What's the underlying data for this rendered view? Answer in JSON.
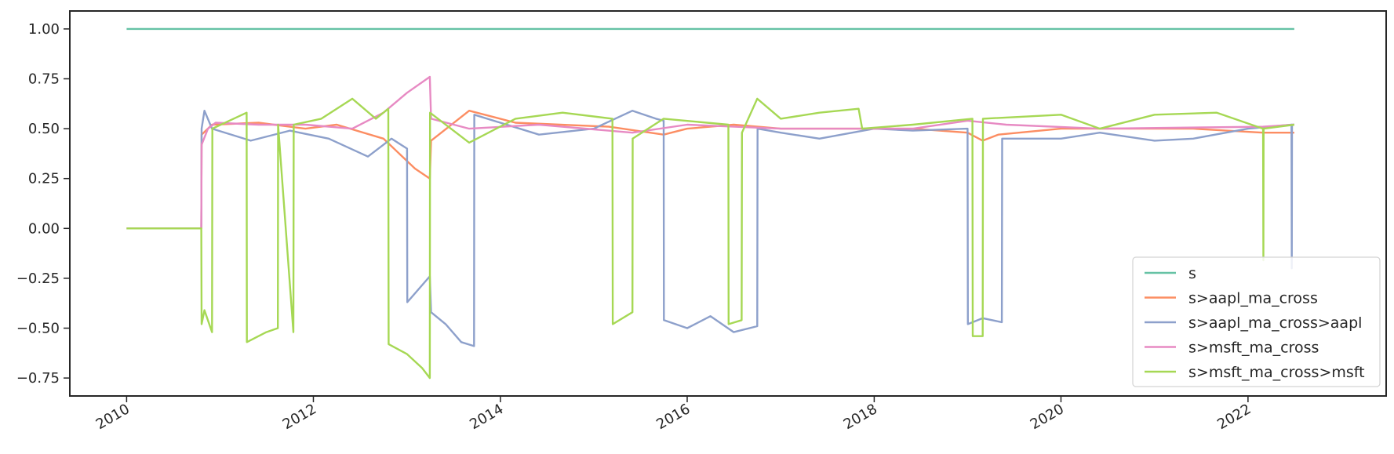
{
  "chart_data": {
    "type": "line",
    "title": "",
    "xlabel": "",
    "ylabel": "",
    "x_axis": "date",
    "xlim": [
      "2009-05-24",
      "2023-06-25"
    ],
    "ylim": [
      -0.84,
      1.09
    ],
    "x_ticks": [
      {
        "date": "2010-01-01",
        "label": "2010"
      },
      {
        "date": "2012-01-01",
        "label": "2012"
      },
      {
        "date": "2014-01-01",
        "label": "2014"
      },
      {
        "date": "2016-01-01",
        "label": "2016"
      },
      {
        "date": "2018-01-01",
        "label": "2018"
      },
      {
        "date": "2020-01-01",
        "label": "2020"
      },
      {
        "date": "2022-01-01",
        "label": "2022"
      }
    ],
    "y_ticks": [
      {
        "value": 1.0,
        "label": "1.00"
      },
      {
        "value": 0.75,
        "label": "0.75"
      },
      {
        "value": 0.5,
        "label": "0.50"
      },
      {
        "value": 0.25,
        "label": "0.25"
      },
      {
        "value": 0.0,
        "label": "0.00"
      },
      {
        "value": -0.25,
        "label": "−0.25"
      },
      {
        "value": -0.5,
        "label": "−0.50"
      },
      {
        "value": -0.75,
        "label": "−0.75"
      }
    ],
    "grid": false,
    "legend_position": "lower-right",
    "series": [
      {
        "name": "s",
        "color": "#66c2a5",
        "points": [
          [
            "2010-01-01",
            1.0
          ],
          [
            "2022-07-01",
            1.0
          ]
        ]
      },
      {
        "name": "s>aapl_ma_cross",
        "color": "#fc8d62",
        "points": [
          [
            "2010-01-01",
            0.0
          ],
          [
            "2010-10-20",
            0.0
          ],
          [
            "2010-10-21",
            0.47
          ],
          [
            "2010-12-01",
            0.52
          ],
          [
            "2011-06-01",
            0.53
          ],
          [
            "2011-12-01",
            0.5
          ],
          [
            "2012-04-01",
            0.52
          ],
          [
            "2012-10-01",
            0.45
          ],
          [
            "2013-02-01",
            0.3
          ],
          [
            "2013-03-31",
            0.25
          ],
          [
            "2013-04-05",
            0.44
          ],
          [
            "2013-09-01",
            0.59
          ],
          [
            "2014-03-01",
            0.53
          ],
          [
            "2015-03-01",
            0.51
          ],
          [
            "2015-10-01",
            0.47
          ],
          [
            "2016-01-01",
            0.5
          ],
          [
            "2016-07-01",
            0.52
          ],
          [
            "2017-01-01",
            0.5
          ],
          [
            "2018-06-01",
            0.5
          ],
          [
            "2019-01-01",
            0.48
          ],
          [
            "2019-03-01",
            0.44
          ],
          [
            "2019-05-01",
            0.47
          ],
          [
            "2020-01-01",
            0.5
          ],
          [
            "2021-06-01",
            0.5
          ],
          [
            "2022-03-01",
            0.48
          ],
          [
            "2022-07-01",
            0.48
          ]
        ]
      },
      {
        "name": "s>aapl_ma_cross>aapl",
        "color": "#8da0cb",
        "points": [
          [
            "2010-01-01",
            0.0
          ],
          [
            "2010-10-20",
            0.0
          ],
          [
            "2010-10-21",
            0.5
          ],
          [
            "2010-11-01",
            0.59
          ],
          [
            "2010-12-01",
            0.5
          ],
          [
            "2011-05-01",
            0.44
          ],
          [
            "2011-10-01",
            0.49
          ],
          [
            "2012-03-01",
            0.45
          ],
          [
            "2012-08-01",
            0.36
          ],
          [
            "2012-11-01",
            0.45
          ],
          [
            "2013-01-01",
            0.4
          ],
          [
            "2013-01-02",
            -0.37
          ],
          [
            "2013-03-31",
            -0.24
          ],
          [
            "2013-04-05",
            -0.42
          ],
          [
            "2013-06-01",
            -0.48
          ],
          [
            "2013-08-01",
            -0.57
          ],
          [
            "2013-09-20",
            -0.59
          ],
          [
            "2013-09-21",
            0.57
          ],
          [
            "2014-06-01",
            0.47
          ],
          [
            "2015-01-01",
            0.5
          ],
          [
            "2015-06-01",
            0.59
          ],
          [
            "2015-09-01",
            0.55
          ],
          [
            "2015-10-01",
            0.54
          ],
          [
            "2015-10-02",
            -0.46
          ],
          [
            "2016-01-01",
            -0.5
          ],
          [
            "2016-04-01",
            -0.44
          ],
          [
            "2016-07-01",
            -0.52
          ],
          [
            "2016-10-01",
            -0.49
          ],
          [
            "2016-10-02",
            0.5
          ],
          [
            "2017-01-01",
            0.48
          ],
          [
            "2017-06-01",
            0.45
          ],
          [
            "2018-01-01",
            0.5
          ],
          [
            "2018-06-01",
            0.49
          ],
          [
            "2019-01-01",
            0.5
          ],
          [
            "2019-01-02",
            -0.48
          ],
          [
            "2019-03-01",
            -0.45
          ],
          [
            "2019-05-15",
            -0.47
          ],
          [
            "2019-05-16",
            0.45
          ],
          [
            "2020-01-01",
            0.45
          ],
          [
            "2020-06-01",
            0.48
          ],
          [
            "2021-01-01",
            0.44
          ],
          [
            "2021-06-01",
            0.45
          ],
          [
            "2022-01-01",
            0.5
          ],
          [
            "2022-06-20",
            0.52
          ],
          [
            "2022-06-21",
            -0.2
          ],
          [
            "2022-06-22",
            0.52
          ],
          [
            "2022-07-01",
            0.52
          ]
        ]
      },
      {
        "name": "s>msft_ma_cross",
        "color": "#e78ac3",
        "points": [
          [
            "2010-01-01",
            0.0
          ],
          [
            "2010-10-20",
            0.0
          ],
          [
            "2010-10-21",
            0.42
          ],
          [
            "2010-11-15",
            0.5
          ],
          [
            "2010-12-15",
            0.53
          ],
          [
            "2011-06-01",
            0.52
          ],
          [
            "2011-12-01",
            0.52
          ],
          [
            "2012-06-01",
            0.5
          ],
          [
            "2012-10-01",
            0.58
          ],
          [
            "2013-01-01",
            0.68
          ],
          [
            "2013-03-31",
            0.76
          ],
          [
            "2013-04-05",
            0.55
          ],
          [
            "2013-09-01",
            0.5
          ],
          [
            "2014-06-01",
            0.52
          ],
          [
            "2015-06-01",
            0.48
          ],
          [
            "2016-01-01",
            0.52
          ],
          [
            "2017-01-01",
            0.5
          ],
          [
            "2018-06-01",
            0.5
          ],
          [
            "2019-01-01",
            0.54
          ],
          [
            "2019-06-01",
            0.52
          ],
          [
            "2020-06-01",
            0.5
          ],
          [
            "2022-03-01",
            0.51
          ],
          [
            "2022-07-01",
            0.52
          ]
        ]
      },
      {
        "name": "s>msft_ma_cross>msft",
        "color": "#a6d854",
        "points": [
          [
            "2010-01-01",
            0.0
          ],
          [
            "2010-10-20",
            0.0
          ],
          [
            "2010-10-21",
            -0.48
          ],
          [
            "2010-11-01",
            -0.41
          ],
          [
            "2010-12-01",
            -0.52
          ],
          [
            "2010-12-02",
            0.5
          ],
          [
            "2011-04-15",
            0.58
          ],
          [
            "2011-04-16",
            -0.57
          ],
          [
            "2011-07-01",
            -0.52
          ],
          [
            "2011-08-15",
            -0.5
          ],
          [
            "2011-08-16",
            0.52
          ],
          [
            "2011-10-15",
            -0.52
          ],
          [
            "2011-10-16",
            0.52
          ],
          [
            "2012-02-01",
            0.55
          ],
          [
            "2012-06-01",
            0.65
          ],
          [
            "2012-09-01",
            0.55
          ],
          [
            "2012-10-20",
            0.6
          ],
          [
            "2012-10-21",
            -0.58
          ],
          [
            "2013-01-01",
            -0.63
          ],
          [
            "2013-03-01",
            -0.7
          ],
          [
            "2013-03-31",
            -0.75
          ],
          [
            "2013-04-01",
            0.58
          ],
          [
            "2013-09-01",
            0.43
          ],
          [
            "2014-03-01",
            0.55
          ],
          [
            "2014-09-01",
            0.58
          ],
          [
            "2015-03-15",
            0.55
          ],
          [
            "2015-03-16",
            -0.48
          ],
          [
            "2015-06-01",
            -0.42
          ],
          [
            "2015-06-02",
            0.45
          ],
          [
            "2015-10-01",
            0.55
          ],
          [
            "2016-06-10",
            0.52
          ],
          [
            "2016-06-11",
            -0.48
          ],
          [
            "2016-08-01",
            -0.46
          ],
          [
            "2016-08-02",
            0.48
          ],
          [
            "2016-10-01",
            0.65
          ],
          [
            "2017-01-01",
            0.55
          ],
          [
            "2017-06-01",
            0.58
          ],
          [
            "2017-11-01",
            0.6
          ],
          [
            "2017-11-15",
            0.5
          ],
          [
            "2018-06-01",
            0.52
          ],
          [
            "2019-01-20",
            0.55
          ],
          [
            "2019-01-21",
            -0.54
          ],
          [
            "2019-03-01",
            -0.54
          ],
          [
            "2019-03-02",
            0.55
          ],
          [
            "2020-01-01",
            0.57
          ],
          [
            "2020-06-01",
            0.5
          ],
          [
            "2021-01-01",
            0.57
          ],
          [
            "2021-09-01",
            0.58
          ],
          [
            "2022-03-01",
            0.5
          ],
          [
            "2022-03-02",
            -0.16
          ],
          [
            "2022-03-03",
            0.5
          ],
          [
            "2022-07-01",
            0.52
          ]
        ]
      }
    ]
  }
}
